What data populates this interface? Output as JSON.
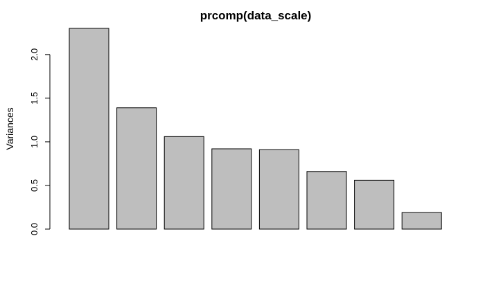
{
  "chart_data": {
    "type": "bar",
    "title": "prcomp(data_scale)",
    "xlabel": "",
    "ylabel": "Variances",
    "categories": [
      "",
      "",
      "",
      "",
      "",
      "",
      "",
      ""
    ],
    "values": [
      2.3,
      1.39,
      1.06,
      0.92,
      0.91,
      0.66,
      0.56,
      0.19
    ],
    "ylim": [
      0,
      2.3
    ],
    "yticks": [
      "0.0",
      "0.5",
      "1.0",
      "1.5",
      "2.0"
    ],
    "grid": false,
    "legend": "none",
    "colors": {
      "bar_fill": "#bebebe",
      "bar_stroke": "#000000",
      "axis": "#000000"
    }
  }
}
